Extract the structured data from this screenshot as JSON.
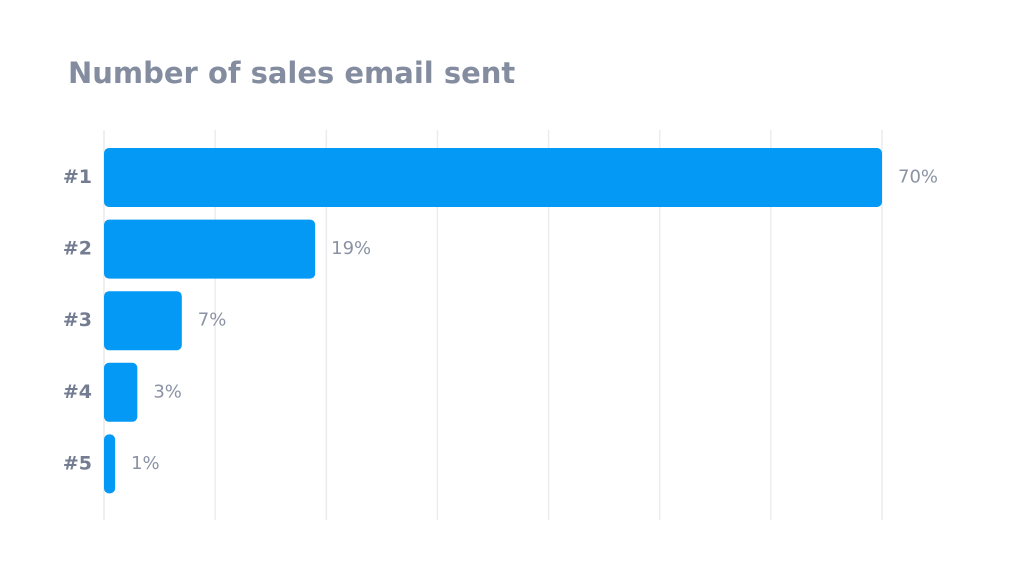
{
  "chart_data": {
    "type": "barh",
    "title": "Number of sales email sent",
    "categories": [
      "#1",
      "#2",
      "#3",
      "#4",
      "#5"
    ],
    "values": [
      70,
      19,
      7,
      3,
      1
    ],
    "value_labels": [
      "70%",
      "19%",
      "7%",
      "3%",
      "1%"
    ],
    "color": "#0399f5",
    "xlim": [
      0,
      70
    ],
    "xticks": [
      0,
      10,
      20,
      30,
      40,
      50,
      60,
      70
    ],
    "grid": true
  }
}
